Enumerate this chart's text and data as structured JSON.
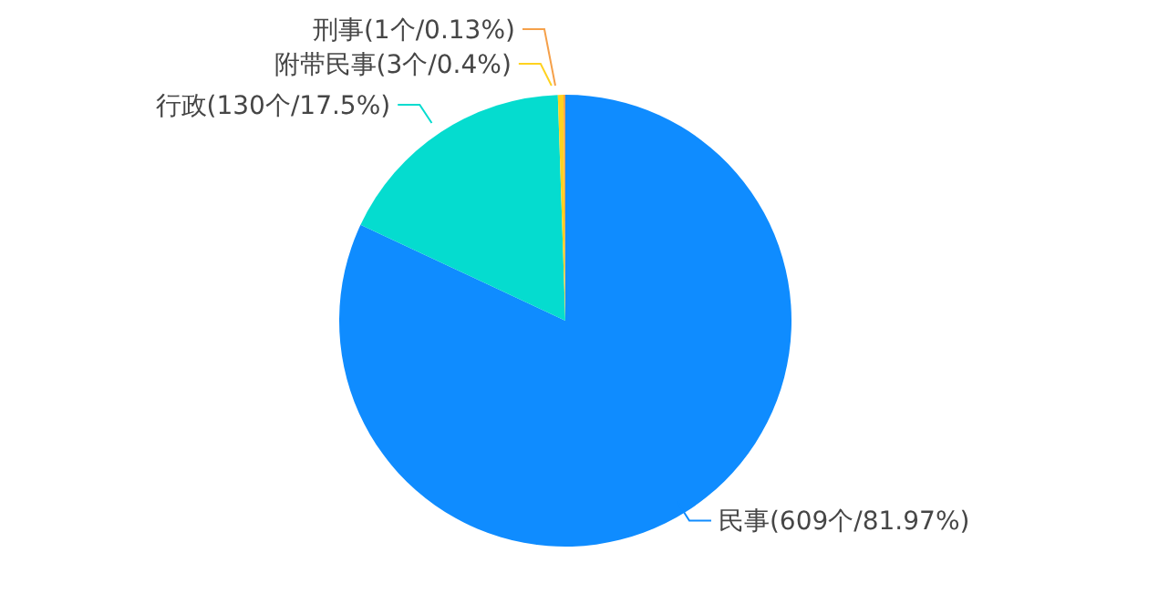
{
  "chart_data": {
    "type": "pie",
    "categories": [
      "民事(609个/81.97%)",
      "行政(130个/17.5%)",
      "附带民事(3个/0.4%)",
      "刑事(1个/0.13%)"
    ],
    "values": [
      81.97,
      17.5,
      0.4,
      0.13
    ],
    "colors": [
      "#0f8cff",
      "#05dccf",
      "#ffd21f",
      "#f5a04a"
    ]
  }
}
